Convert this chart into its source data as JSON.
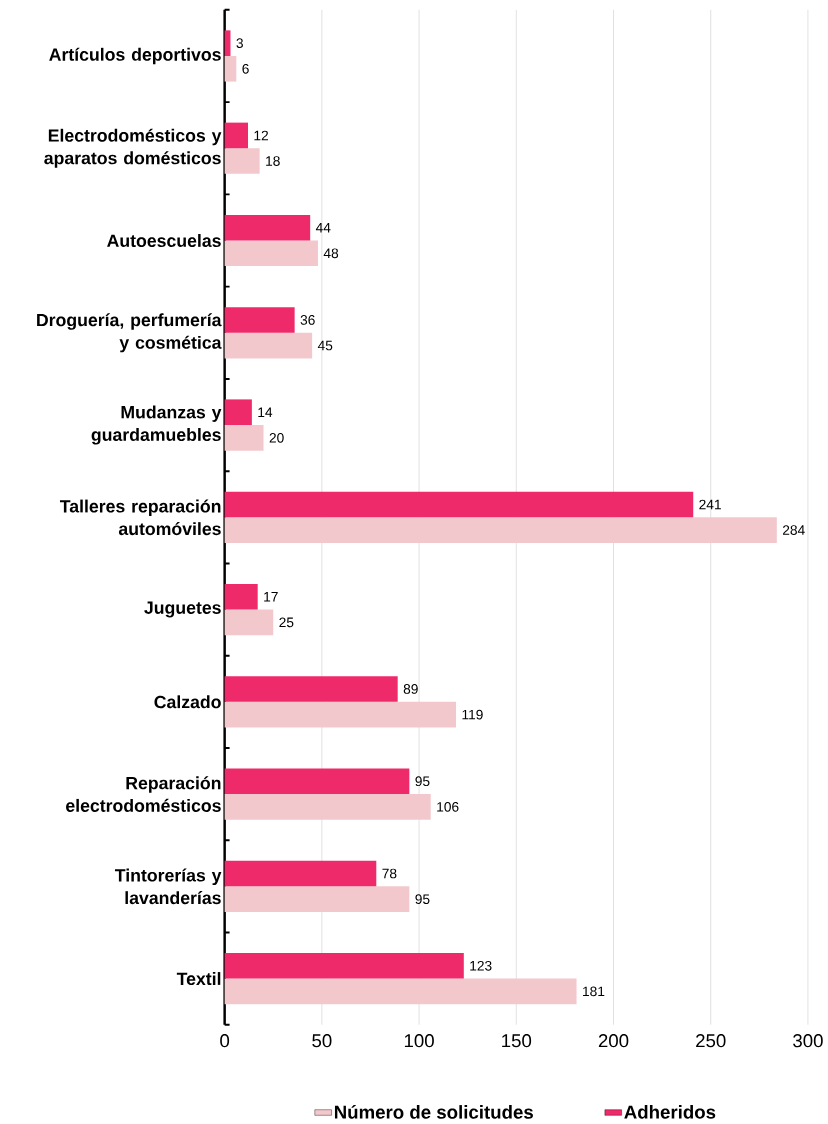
{
  "chart_data": {
    "type": "bar",
    "orientation": "horizontal",
    "categories": [
      "Artículos deportivos",
      "Electrodomésticos y aparatos domésticos",
      "Autoescuelas",
      "Droguería, perfumería y cosmética",
      "Mudanzas y guardamuebles",
      "Talleres reparación automóviles",
      "Juguetes",
      "Calzado",
      "Reparación electrodomésticos",
      "Tintorerías y lavanderías",
      "Textil"
    ],
    "series": [
      {
        "name": "Número de solicitudes",
        "color": "#f2c8cd",
        "values": [
          6,
          18,
          48,
          45,
          20,
          284,
          25,
          119,
          106,
          95,
          181
        ]
      },
      {
        "name": "Adheridos",
        "color": "#ee2a6b",
        "values": [
          3,
          12,
          44,
          36,
          14,
          241,
          17,
          89,
          95,
          78,
          123
        ]
      }
    ],
    "xlim": [
      0,
      300
    ],
    "xticks": [
      0,
      50,
      100,
      150,
      200,
      250,
      300
    ],
    "grid": "x",
    "legend": "bottom",
    "data_labels": true
  }
}
